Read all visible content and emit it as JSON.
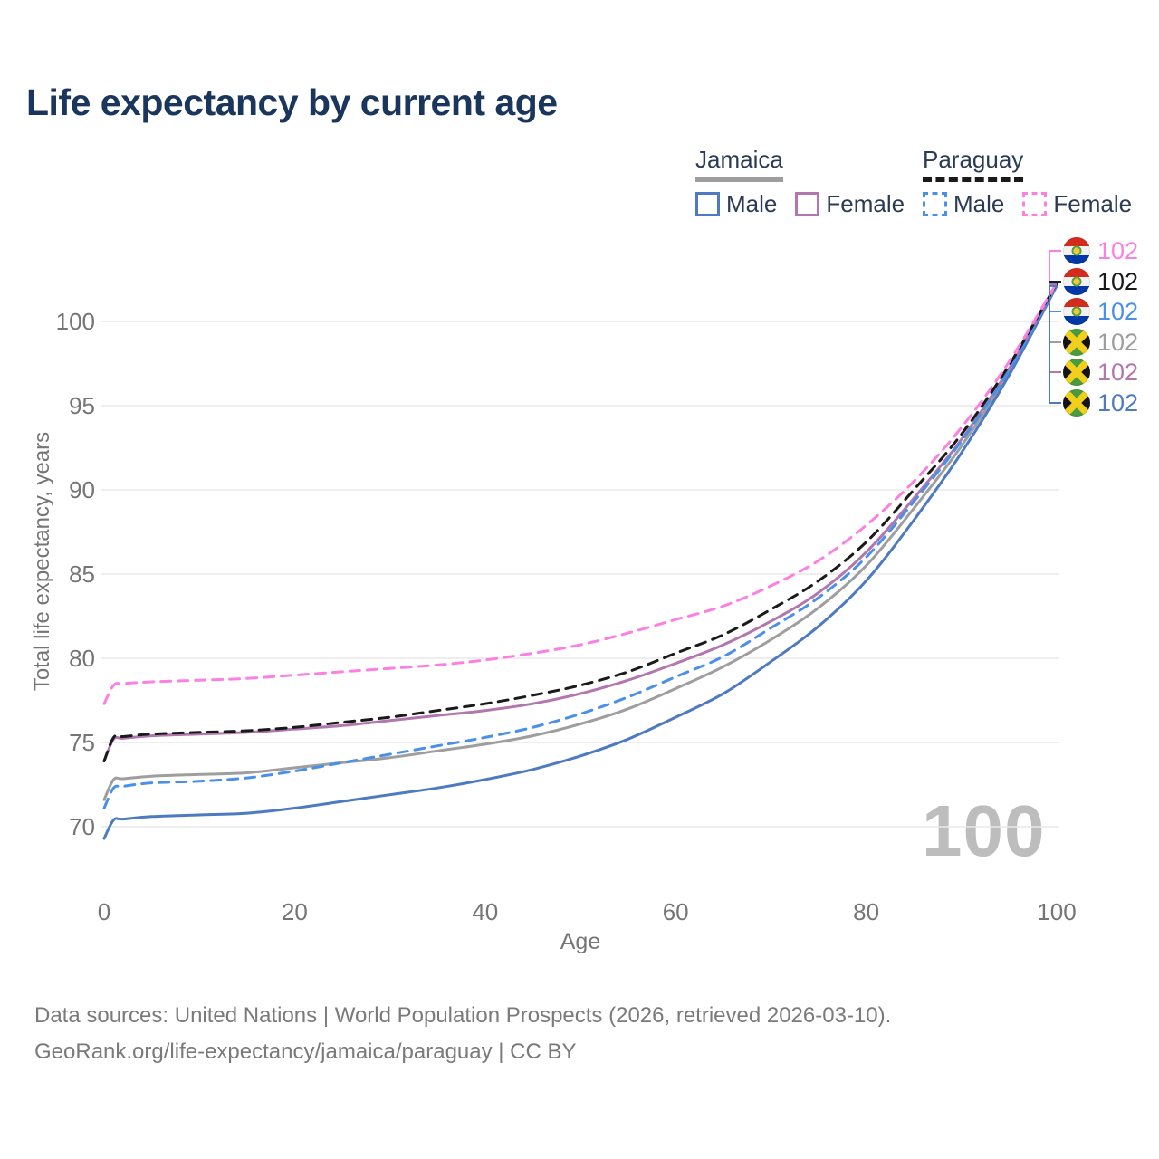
{
  "title": "Life expectancy by current age",
  "watermark": "100",
  "colors": {
    "title_text": "#1b365d",
    "axis_text": "#757575",
    "grid": "#e9e9e9",
    "watermark_text": "#bdbdbd",
    "footer_text": "#7a7a7a",
    "jamaica_male": "#4d7ac0",
    "jamaica_female": "#b277ae",
    "jamaica_both": "#9e9e9e",
    "paraguay_male": "#4a90e8",
    "paraguay_female": "#fb80e1",
    "paraguay_both": "#1a1a1a"
  },
  "legend": {
    "groups": [
      {
        "country": "Jamaica",
        "line_style": "solid",
        "line_color": "#9e9e9e",
        "items": [
          {
            "label": "Male",
            "color": "#4d7ac0",
            "dashed": false
          },
          {
            "label": "Female",
            "color": "#b277ae",
            "dashed": false
          }
        ]
      },
      {
        "country": "Paraguay",
        "line_style": "dashed",
        "line_color": "#1a1a1a",
        "items": [
          {
            "label": "Male",
            "color": "#4a90e8",
            "dashed": true
          },
          {
            "label": "Female",
            "color": "#fb80e1",
            "dashed": true
          }
        ]
      }
    ]
  },
  "chart_data": {
    "type": "line",
    "title": "Life expectancy by current age",
    "x_axis": {
      "label": "Age",
      "ticks": [
        0,
        20,
        40,
        60,
        80,
        100
      ],
      "range": [
        0,
        100
      ]
    },
    "y_axis": {
      "label": "Total life expectancy, years",
      "ticks": [
        70,
        75,
        80,
        85,
        90,
        95,
        100
      ],
      "range": [
        68.5,
        103
      ]
    },
    "grid": "horizontal-only",
    "legend_position": "top-right",
    "x": [
      0,
      1,
      2,
      5,
      10,
      15,
      20,
      25,
      30,
      35,
      40,
      45,
      50,
      55,
      60,
      65,
      70,
      75,
      80,
      85,
      90,
      95,
      100
    ],
    "series": [
      {
        "name": "Jamaica Male",
        "country": "Jamaica",
        "sex": "Male",
        "style": "solid",
        "color": "#4d7ac0",
        "values": [
          69.3,
          70.4,
          70.45,
          70.6,
          70.7,
          70.8,
          71.1,
          71.5,
          71.9,
          72.3,
          72.8,
          73.4,
          74.2,
          75.2,
          76.5,
          77.9,
          79.8,
          81.9,
          84.6,
          88.2,
          92.2,
          96.8,
          102.1
        ]
      },
      {
        "name": "Jamaica Female",
        "country": "Jamaica",
        "sex": "Female",
        "style": "solid",
        "color": "#b277ae",
        "values": [
          73.9,
          75.2,
          75.25,
          75.4,
          75.5,
          75.6,
          75.8,
          76.0,
          76.3,
          76.6,
          76.9,
          77.3,
          77.9,
          78.7,
          79.7,
          80.8,
          82.2,
          83.9,
          86.3,
          89.5,
          93.0,
          97.2,
          102.2
        ]
      },
      {
        "name": "Jamaica Both sexes",
        "country": "Jamaica",
        "sex": "Both",
        "style": "solid",
        "color": "#9e9e9e",
        "values": [
          71.6,
          72.8,
          72.85,
          73.0,
          73.1,
          73.2,
          73.5,
          73.8,
          74.1,
          74.5,
          74.9,
          75.4,
          76.1,
          77.0,
          78.2,
          79.5,
          81.1,
          83.0,
          85.5,
          88.9,
          92.6,
          97.0,
          102.15
        ]
      },
      {
        "name": "Paraguay Male",
        "country": "Paraguay",
        "sex": "Male",
        "style": "dashed",
        "color": "#4a90e8",
        "values": [
          71.1,
          72.3,
          72.4,
          72.6,
          72.7,
          72.9,
          73.3,
          73.8,
          74.3,
          74.8,
          75.3,
          75.9,
          76.7,
          77.7,
          78.9,
          80.1,
          81.8,
          83.6,
          86.0,
          89.3,
          92.9,
          97.1,
          102.2
        ]
      },
      {
        "name": "Paraguay Female",
        "country": "Paraguay",
        "sex": "Female",
        "style": "dashed",
        "color": "#fb80e1",
        "values": [
          77.3,
          78.4,
          78.5,
          78.6,
          78.7,
          78.8,
          79.0,
          79.2,
          79.4,
          79.6,
          79.9,
          80.3,
          80.8,
          81.5,
          82.3,
          83.1,
          84.3,
          85.8,
          87.9,
          90.5,
          93.7,
          97.6,
          102.3
        ]
      },
      {
        "name": "Paraguay Both sexes",
        "country": "Paraguay",
        "sex": "Both",
        "style": "dashed",
        "color": "#1a1a1a",
        "values": [
          73.9,
          75.3,
          75.35,
          75.5,
          75.6,
          75.7,
          75.9,
          76.2,
          76.5,
          76.9,
          77.3,
          77.8,
          78.4,
          79.2,
          80.3,
          81.4,
          82.9,
          84.6,
          86.9,
          90.0,
          93.3,
          97.4,
          102.25
        ]
      }
    ]
  },
  "end_labels": [
    {
      "flag": "paraguay",
      "value": "102",
      "color": "#fb80e1",
      "series_index": 4
    },
    {
      "flag": "paraguay",
      "value": "102",
      "color": "#1a1a1a",
      "series_index": 5
    },
    {
      "flag": "paraguay",
      "value": "102",
      "color": "#4a90e8",
      "series_index": 3
    },
    {
      "flag": "jamaica",
      "value": "102",
      "color": "#9e9e9e",
      "series_index": 2
    },
    {
      "flag": "jamaica",
      "value": "102",
      "color": "#b277ae",
      "series_index": 1
    },
    {
      "flag": "jamaica",
      "value": "102",
      "color": "#4d7ac0",
      "series_index": 0
    }
  ],
  "footer": {
    "line1": "Data sources: United Nations | World Population Prospects (2026, retrieved 2026-03-10).",
    "line2": "GeoRank.org/life-expectancy/jamaica/paraguay | CC BY"
  }
}
